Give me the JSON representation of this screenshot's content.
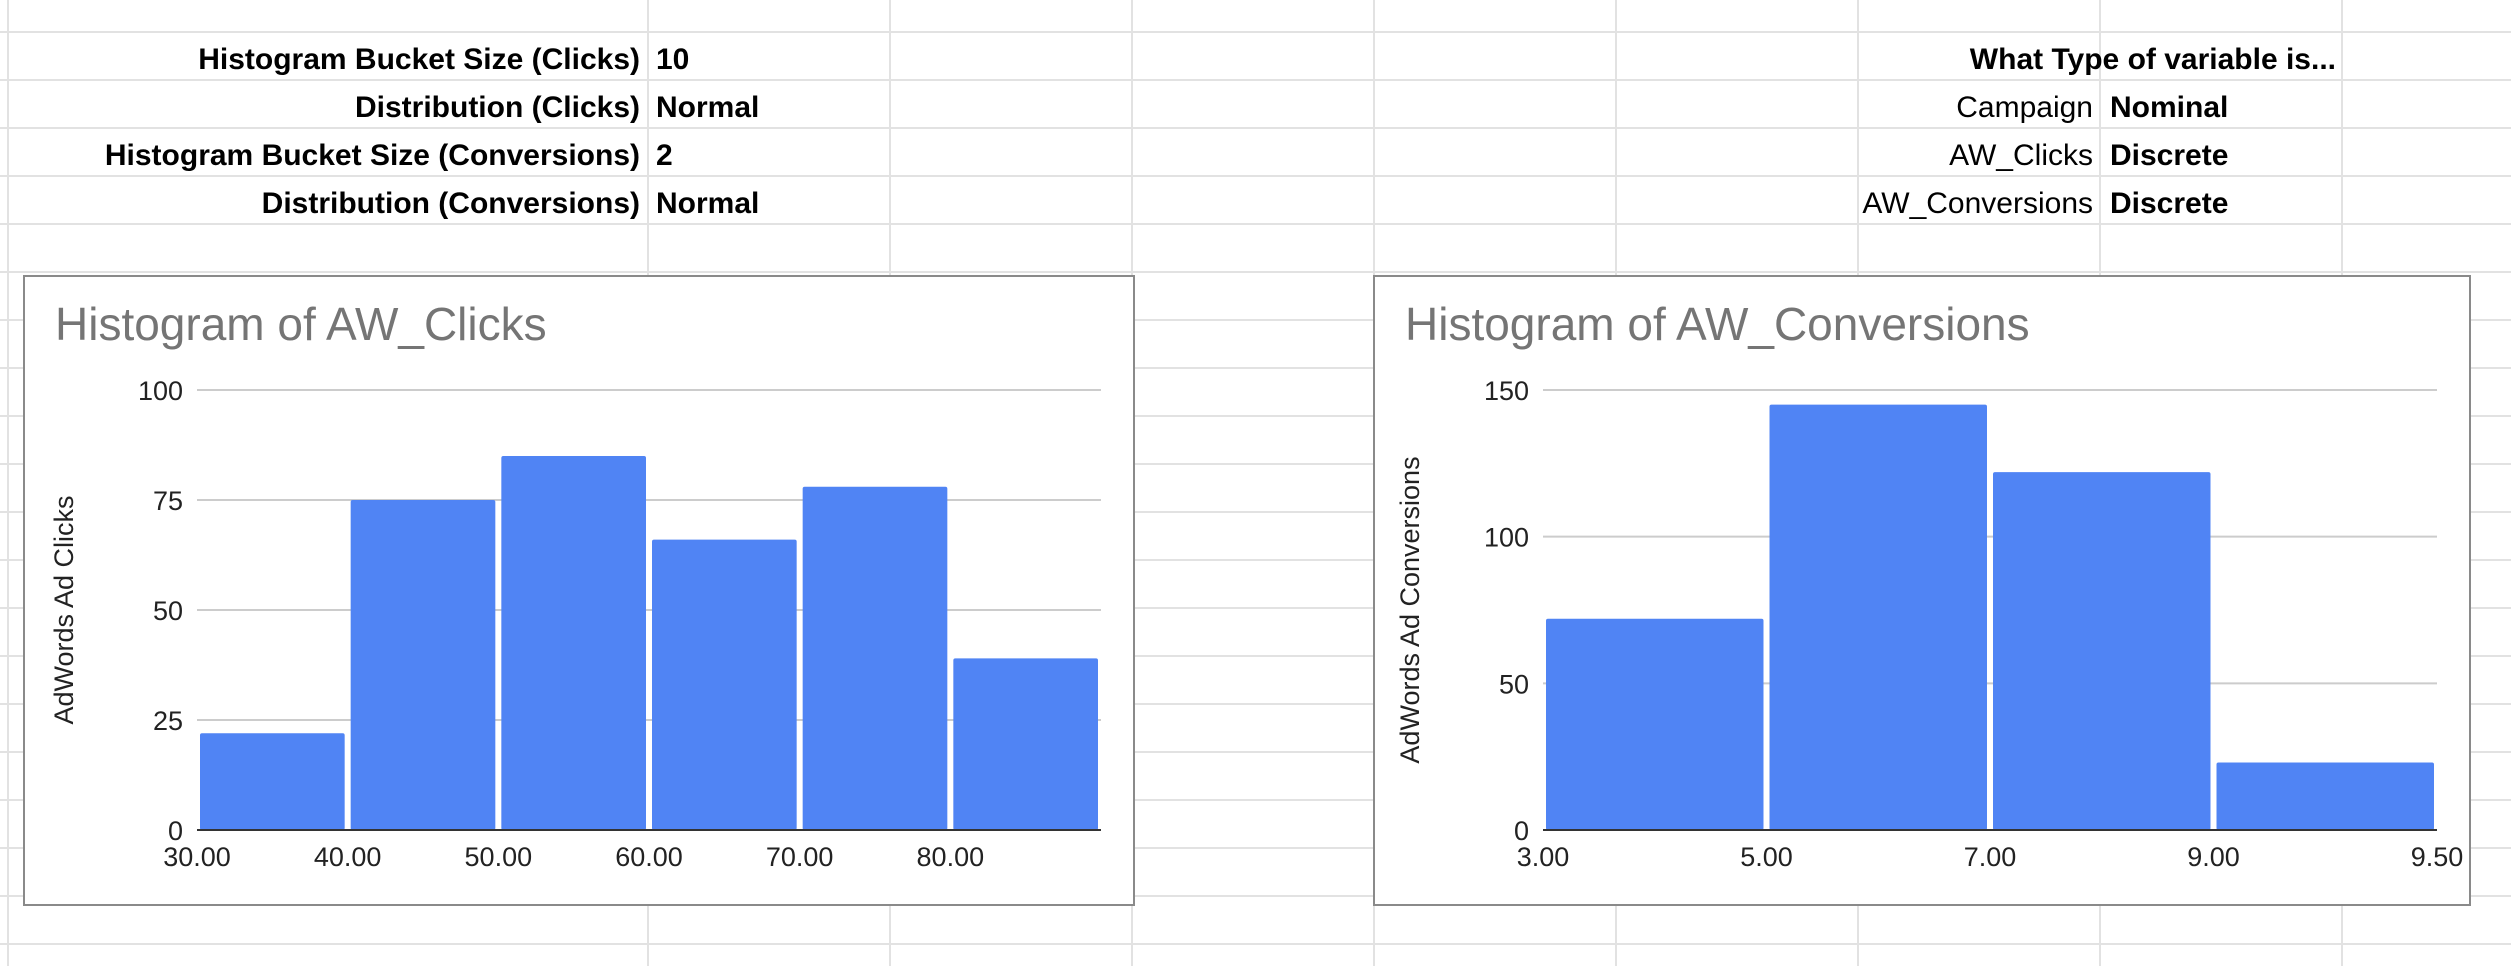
{
  "info_table": {
    "rows": [
      {
        "label": "Histogram Bucket Size (Clicks)",
        "value": "10"
      },
      {
        "label": "Distribution (Clicks)",
        "value": "Normal"
      },
      {
        "label": "Histogram Bucket Size (Conversions)",
        "value": "2"
      },
      {
        "label": "Distribution (Conversions)",
        "value": "Normal"
      }
    ]
  },
  "variable_table": {
    "header": "What Type of variable is...",
    "rows": [
      {
        "label": "Campaign",
        "value": "Nominal"
      },
      {
        "label": "AW_Clicks",
        "value": "Discrete"
      },
      {
        "label": "AW_Conversions",
        "value": "Discrete"
      }
    ]
  },
  "colors": {
    "bar": "#5084f4",
    "gridline": "#cccccc",
    "title": "#757575",
    "sheet_grid": "#e2e2e2"
  },
  "chart_data": [
    {
      "type": "bar",
      "title": "Histogram of AW_Clicks",
      "ylabel": "AdWords Ad Clicks",
      "xlabel": "",
      "bins": [
        {
          "from": 30,
          "to": 40,
          "count": 22
        },
        {
          "from": 40,
          "to": 50,
          "count": 75
        },
        {
          "from": 50,
          "to": 60,
          "count": 85
        },
        {
          "from": 60,
          "to": 70,
          "count": 66
        },
        {
          "from": 70,
          "to": 80,
          "count": 78
        },
        {
          "from": 80,
          "to": 90,
          "count": 39
        }
      ],
      "x_ticks": [
        "30.00",
        "40.00",
        "50.00",
        "60.00",
        "70.00",
        "80.00"
      ],
      "y_ticks": [
        "0",
        "25",
        "50",
        "75",
        "100"
      ],
      "ylim": [
        0,
        100
      ],
      "grid": true,
      "legend": "none"
    },
    {
      "type": "bar",
      "title": "Histogram of AW_Conversions",
      "ylabel": "AdWords Ad Conversions",
      "xlabel": "",
      "bins": [
        {
          "from": 3,
          "to": 5,
          "count": 72
        },
        {
          "from": 5,
          "to": 7,
          "count": 145
        },
        {
          "from": 7,
          "to": 9,
          "count": 122
        },
        {
          "from": 9,
          "to": 9.5,
          "count": 23
        }
      ],
      "x_ticks": [
        "3.00",
        "5.00",
        "7.00",
        "9.00",
        "9.50"
      ],
      "y_ticks": [
        "0",
        "50",
        "100",
        "150"
      ],
      "ylim": [
        0,
        150
      ],
      "grid": true,
      "legend": "none"
    }
  ]
}
